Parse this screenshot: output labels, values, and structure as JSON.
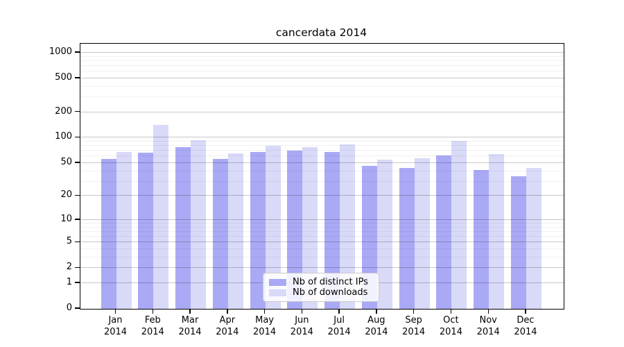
{
  "chart_data": {
    "type": "bar",
    "title": "cancerdata 2014",
    "categories": [
      "Jan",
      "Feb",
      "Mar",
      "Apr",
      "May",
      "Jun",
      "Jul",
      "Aug",
      "Sep",
      "Oct",
      "Nov",
      "Dec"
    ],
    "year_label": "2014",
    "series": [
      {
        "name": "Nb of distinct IPs",
        "color": "#a9a9f5",
        "values": [
          56,
          67,
          78,
          56,
          68,
          70,
          68,
          46,
          44,
          62,
          41,
          35
        ]
      },
      {
        "name": "Nb of downloads",
        "color": "#d9d9f8",
        "values": [
          68,
          142,
          94,
          65,
          80,
          77,
          84,
          55,
          57,
          91,
          64,
          44
        ]
      }
    ],
    "yscale": "log1p",
    "ylim": [
      0,
      1300
    ],
    "yticks": [
      0,
      1,
      2,
      5,
      10,
      20,
      50,
      100,
      200,
      500,
      1000
    ],
    "yticks_minor": [
      3,
      4,
      6,
      7,
      8,
      9,
      30,
      40,
      60,
      70,
      80,
      90,
      300,
      400,
      600,
      700,
      800,
      900
    ],
    "grid": true,
    "legend_position": "lower center"
  },
  "colors": {
    "bar_distinct_ips": "#a9a9f5",
    "bar_downloads": "#d9d9f8",
    "spine": "#000000",
    "grid_major": "rgba(0,0,0,0.22)",
    "grid_minor": "rgba(0,0,0,0.055)",
    "background": "#ffffff",
    "legend_border": "#cbcbcb"
  }
}
